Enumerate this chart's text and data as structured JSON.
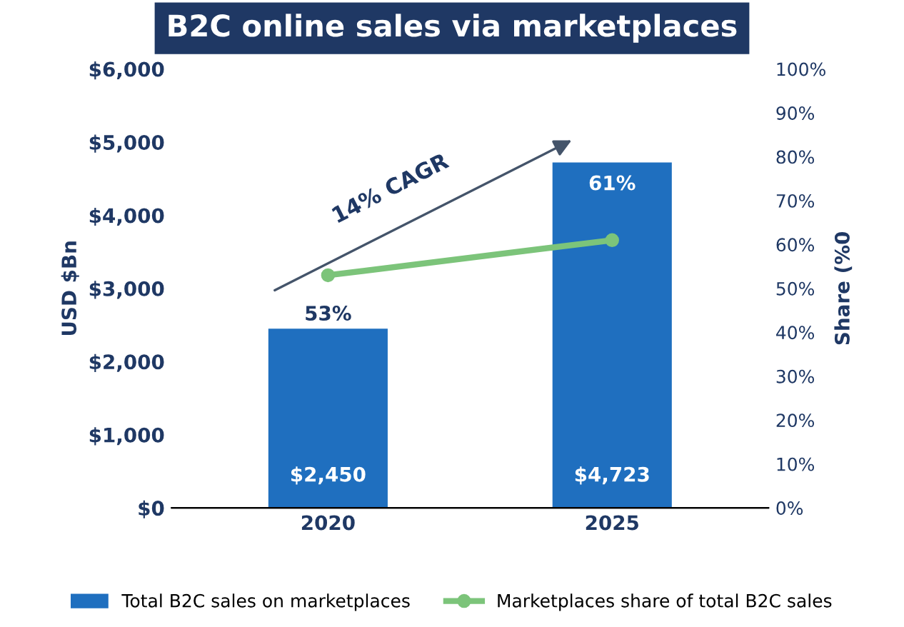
{
  "chart_data": {
    "type": "bar",
    "title": "B2C online sales via marketplaces",
    "categories": [
      "2020",
      "2025"
    ],
    "series": [
      {
        "name": "Total B2C sales on marketplaces",
        "color": "#1f6fbf",
        "values": [
          2450,
          4723
        ],
        "value_labels": [
          "$2,450",
          "$4,723"
        ]
      },
      {
        "name": "Marketplaces share of total B2C sales",
        "type": "line",
        "axis": "y2",
        "color": "#7cc47a",
        "values": [
          53,
          61
        ],
        "value_labels": [
          "53%",
          "61%"
        ]
      }
    ],
    "ylabel": "USD $Bn",
    "y2label": "Share (%0",
    "ylim": [
      0,
      6000
    ],
    "yticks": [
      {
        "value": 0,
        "label": "$0"
      },
      {
        "value": 1000,
        "label": "$1,000"
      },
      {
        "value": 2000,
        "label": "$2,000"
      },
      {
        "value": 3000,
        "label": "$3,000"
      },
      {
        "value": 4000,
        "label": "$4,000"
      },
      {
        "value": 5000,
        "label": "$5,000"
      },
      {
        "value": 6000,
        "label": "$6,000"
      }
    ],
    "y2lim": [
      0,
      100
    ],
    "y2ticks": [
      {
        "value": 0,
        "label": "0%"
      },
      {
        "value": 10,
        "label": "10%"
      },
      {
        "value": 20,
        "label": "20%"
      },
      {
        "value": 30,
        "label": "30%"
      },
      {
        "value": 40,
        "label": "40%"
      },
      {
        "value": 50,
        "label": "50%"
      },
      {
        "value": 60,
        "label": "60%"
      },
      {
        "value": 70,
        "label": "70%"
      },
      {
        "value": 80,
        "label": "80%"
      },
      {
        "value": 90,
        "label": "90%"
      },
      {
        "value": 100,
        "label": "100%"
      }
    ],
    "annotations": [
      "14% CAGR"
    ],
    "marker": "circle",
    "line_style": "solid",
    "grid": false,
    "legend": "bottom"
  }
}
